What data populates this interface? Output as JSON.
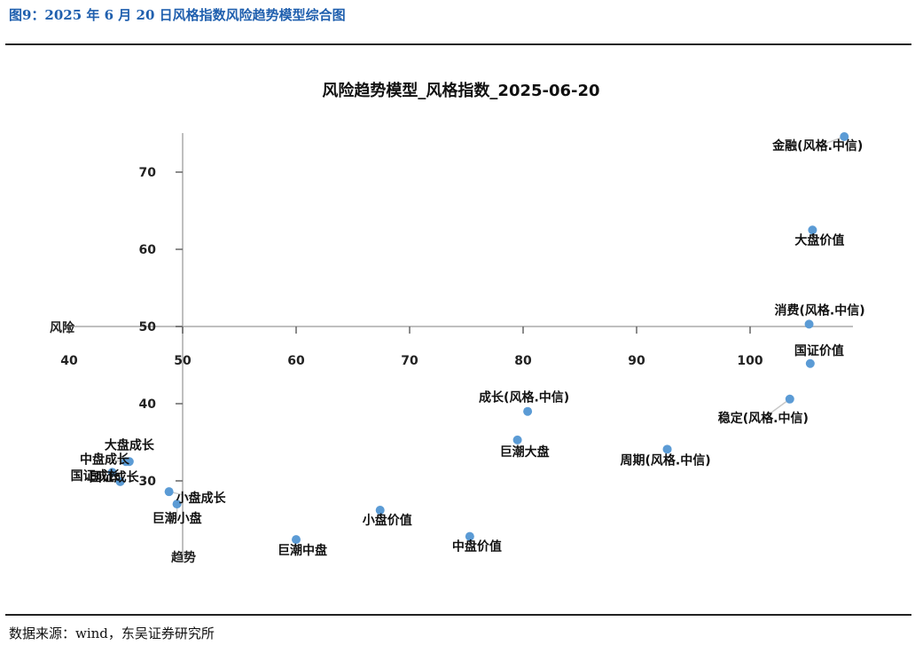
{
  "figure": {
    "title": "图9：2025 年 6 月 20 日风格指数风险趋势模型综合图",
    "source": "数据来源：wind，东吴证券研究所"
  },
  "chart_data": {
    "type": "scatter",
    "title": "风险趋势模型_风格指数_2025-06-20",
    "xlabel": "趋势",
    "ylabel": "风险",
    "xlim": [
      40,
      109
    ],
    "ylim": [
      16,
      75
    ],
    "x_ticks": [
      40,
      50,
      60,
      70,
      80,
      90,
      100
    ],
    "y_ticks": [
      30,
      40,
      50,
      60,
      70
    ],
    "axis_cross": {
      "x": 50,
      "y": 50
    },
    "grid": false,
    "point_color": "#5b9bd5",
    "points": [
      {
        "label": "金融(风格.中信)",
        "x": 108.3,
        "y": 74.6
      },
      {
        "label": "大盘价值",
        "x": 105.5,
        "y": 62.5
      },
      {
        "label": "消费(风格.中信)",
        "x": 105.2,
        "y": 50.3
      },
      {
        "label": "国证价值",
        "x": 105.3,
        "y": 45.2
      },
      {
        "label": "稳定(风格.中信)",
        "x": 103.5,
        "y": 40.6
      },
      {
        "label": "成长(风格.中信)",
        "x": 80.4,
        "y": 39.0
      },
      {
        "label": "巨潮大盘",
        "x": 79.5,
        "y": 35.3
      },
      {
        "label": "周期(风格.中信)",
        "x": 92.7,
        "y": 34.1
      },
      {
        "label": "大盘成长",
        "x": 45.3,
        "y": 32.5
      },
      {
        "label": "中盘成长",
        "x": 45.0,
        "y": 32.5
      },
      {
        "label": "国证成长",
        "x": 43.8,
        "y": 31.1
      },
      {
        "label": "国证成长",
        "x": 44.5,
        "y": 29.9
      },
      {
        "label": "小盘成长",
        "x": 48.8,
        "y": 28.6
      },
      {
        "label": "巨潮小盘",
        "x": 49.5,
        "y": 27.0
      },
      {
        "label": "小盘价值",
        "x": 67.4,
        "y": 26.2
      },
      {
        "label": "巨潮中盘",
        "x": 60.0,
        "y": 22.4
      },
      {
        "label": "中盘价值",
        "x": 75.3,
        "y": 22.8
      }
    ]
  }
}
